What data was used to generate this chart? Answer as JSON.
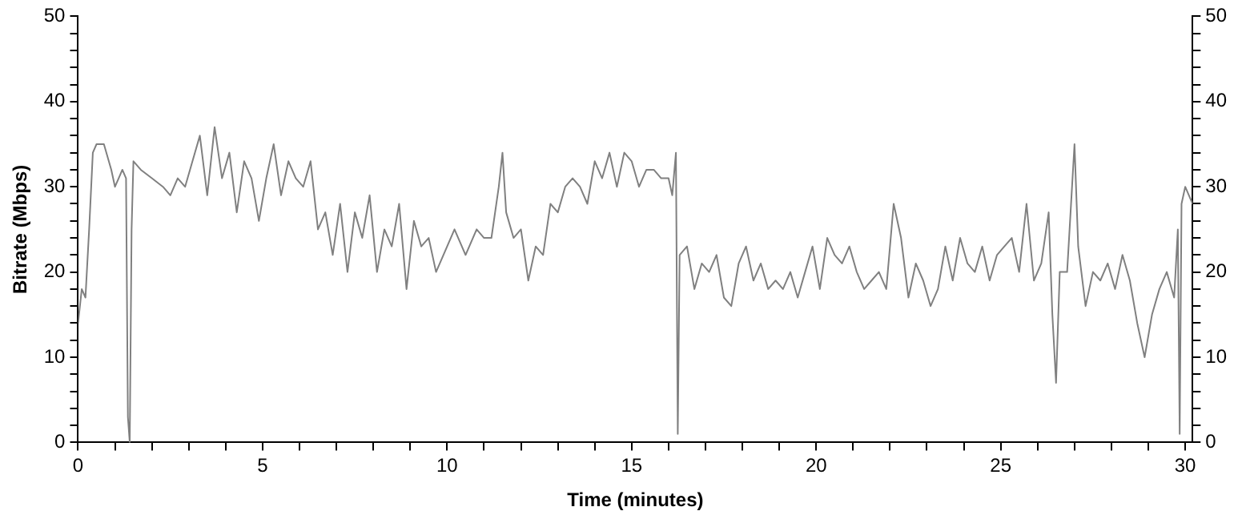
{
  "chart_data": {
    "type": "line",
    "xlabel": "Time (minutes)",
    "ylabel": "Bitrate (Mbps)",
    "xlim": [
      0,
      30.2
    ],
    "ylim": [
      0,
      50
    ],
    "y2lim": [
      0,
      50
    ],
    "xticks": [
      0,
      {
        "value": 1,
        "label": null
      },
      {
        "value": 2,
        "label": null
      },
      {
        "value": 3,
        "label": null
      },
      {
        "value": 4,
        "label": null
      },
      5,
      {
        "value": 6,
        "label": null
      },
      {
        "value": 7,
        "label": null
      },
      {
        "value": 8,
        "label": null
      },
      {
        "value": 9,
        "label": null
      },
      10,
      {
        "value": 11,
        "label": null
      },
      {
        "value": 12,
        "label": null
      },
      {
        "value": 13,
        "label": null
      },
      {
        "value": 14,
        "label": null
      },
      15,
      {
        "value": 16,
        "label": null
      },
      {
        "value": 17,
        "label": null
      },
      {
        "value": 18,
        "label": null
      },
      {
        "value": 19,
        "label": null
      },
      20,
      {
        "value": 21,
        "label": null
      },
      {
        "value": 22,
        "label": null
      },
      {
        "value": 23,
        "label": null
      },
      {
        "value": 24,
        "label": null
      },
      25,
      {
        "value": 26,
        "label": null
      },
      {
        "value": 27,
        "label": null
      },
      {
        "value": 28,
        "label": null
      },
      {
        "value": 29,
        "label": null
      },
      30
    ],
    "yticks": [
      0,
      {
        "value": 2,
        "label": null
      },
      {
        "value": 4,
        "label": null
      },
      {
        "value": 6,
        "label": null
      },
      {
        "value": 8,
        "label": null
      },
      10,
      {
        "value": 12,
        "label": null
      },
      {
        "value": 14,
        "label": null
      },
      {
        "value": 16,
        "label": null
      },
      {
        "value": 18,
        "label": null
      },
      20,
      {
        "value": 22,
        "label": null
      },
      {
        "value": 24,
        "label": null
      },
      {
        "value": 26,
        "label": null
      },
      {
        "value": 28,
        "label": null
      },
      30,
      {
        "value": 32,
        "label": null
      },
      {
        "value": 34,
        "label": null
      },
      {
        "value": 36,
        "label": null
      },
      {
        "value": 38,
        "label": null
      },
      40,
      {
        "value": 42,
        "label": null
      },
      {
        "value": 44,
        "label": null
      },
      {
        "value": 46,
        "label": null
      },
      {
        "value": 48,
        "label": null
      },
      50
    ],
    "y2ticks": [
      0,
      {
        "value": 2,
        "label": null
      },
      {
        "value": 4,
        "label": null
      },
      {
        "value": 6,
        "label": null
      },
      {
        "value": 8,
        "label": null
      },
      10,
      {
        "value": 12,
        "label": null
      },
      {
        "value": 14,
        "label": null
      },
      {
        "value": 16,
        "label": null
      },
      {
        "value": 18,
        "label": null
      },
      20,
      {
        "value": 22,
        "label": null
      },
      {
        "value": 24,
        "label": null
      },
      {
        "value": 26,
        "label": null
      },
      {
        "value": 28,
        "label": null
      },
      30,
      {
        "value": 32,
        "label": null
      },
      {
        "value": 34,
        "label": null
      },
      {
        "value": 36,
        "label": null
      },
      {
        "value": 38,
        "label": null
      },
      40,
      {
        "value": 42,
        "label": null
      },
      {
        "value": 44,
        "label": null
      },
      {
        "value": 46,
        "label": null
      },
      {
        "value": 48,
        "label": null
      },
      50
    ],
    "grid": false,
    "legend": false,
    "marker": "none",
    "line_style": "solid",
    "series": [
      {
        "color": "#808080",
        "x": [
          0,
          0.1,
          0.2,
          0.3,
          0.4,
          0.5,
          0.7,
          0.9,
          1.0,
          1.1,
          1.2,
          1.3,
          1.35,
          1.4,
          1.45,
          1.5,
          1.7,
          2.0,
          2.3,
          2.5,
          2.7,
          2.9,
          3.1,
          3.3,
          3.5,
          3.7,
          3.9,
          4.1,
          4.3,
          4.5,
          4.7,
          4.9,
          5.1,
          5.3,
          5.5,
          5.7,
          5.9,
          6.1,
          6.3,
          6.5,
          6.7,
          6.9,
          7.1,
          7.3,
          7.5,
          7.7,
          7.9,
          8.1,
          8.3,
          8.5,
          8.7,
          8.9,
          9.1,
          9.3,
          9.5,
          9.7,
          9.9,
          10.2,
          10.5,
          10.8,
          11.0,
          11.2,
          11.4,
          11.5,
          11.6,
          11.8,
          12.0,
          12.2,
          12.4,
          12.6,
          12.8,
          13.0,
          13.2,
          13.4,
          13.6,
          13.8,
          14.0,
          14.2,
          14.4,
          14.6,
          14.8,
          15.0,
          15.2,
          15.4,
          15.6,
          15.8,
          16.0,
          16.1,
          16.2,
          16.25,
          16.3,
          16.5,
          16.7,
          16.9,
          17.1,
          17.3,
          17.5,
          17.7,
          17.9,
          18.1,
          18.3,
          18.5,
          18.7,
          18.9,
          19.1,
          19.3,
          19.5,
          19.7,
          19.9,
          20.1,
          20.3,
          20.5,
          20.7,
          20.9,
          21.1,
          21.3,
          21.5,
          21.7,
          21.9,
          22.1,
          22.3,
          22.5,
          22.7,
          22.9,
          23.1,
          23.3,
          23.5,
          23.7,
          23.9,
          24.1,
          24.3,
          24.5,
          24.7,
          24.9,
          25.1,
          25.3,
          25.5,
          25.7,
          25.9,
          26.1,
          26.3,
          26.4,
          26.5,
          26.6,
          26.8,
          27.0,
          27.1,
          27.3,
          27.5,
          27.7,
          27.9,
          28.1,
          28.3,
          28.5,
          28.7,
          28.9,
          29.1,
          29.3,
          29.5,
          29.7,
          29.8,
          29.85,
          29.9,
          30.0,
          30.1,
          30.2
        ],
        "values": [
          14,
          18,
          17,
          25,
          34,
          35,
          35,
          32,
          30,
          31,
          32,
          31,
          3,
          0,
          25,
          33,
          32,
          31,
          30,
          29,
          31,
          30,
          33,
          36,
          29,
          37,
          31,
          34,
          27,
          33,
          31,
          26,
          31,
          35,
          29,
          33,
          31,
          30,
          33,
          25,
          27,
          22,
          28,
          20,
          27,
          24,
          29,
          20,
          25,
          23,
          28,
          18,
          26,
          23,
          24,
          20,
          22,
          25,
          22,
          25,
          24,
          24,
          30,
          34,
          27,
          24,
          25,
          19,
          23,
          22,
          28,
          27,
          30,
          31,
          30,
          28,
          33,
          31,
          34,
          30,
          34,
          33,
          30,
          32,
          32,
          31,
          31,
          29,
          34,
          1,
          22,
          23,
          18,
          21,
          20,
          22,
          17,
          16,
          21,
          23,
          19,
          21,
          18,
          19,
          18,
          20,
          17,
          20,
          23,
          18,
          24,
          22,
          21,
          23,
          20,
          18,
          19,
          20,
          18,
          28,
          24,
          17,
          21,
          19,
          16,
          18,
          23,
          19,
          24,
          21,
          20,
          23,
          19,
          22,
          23,
          24,
          20,
          28,
          19,
          21,
          27,
          15,
          7,
          20,
          20,
          35,
          23,
          16,
          20,
          19,
          21,
          18,
          22,
          19,
          14,
          10,
          15,
          18,
          20,
          17,
          25,
          1,
          28,
          30,
          29,
          28
        ]
      }
    ]
  }
}
